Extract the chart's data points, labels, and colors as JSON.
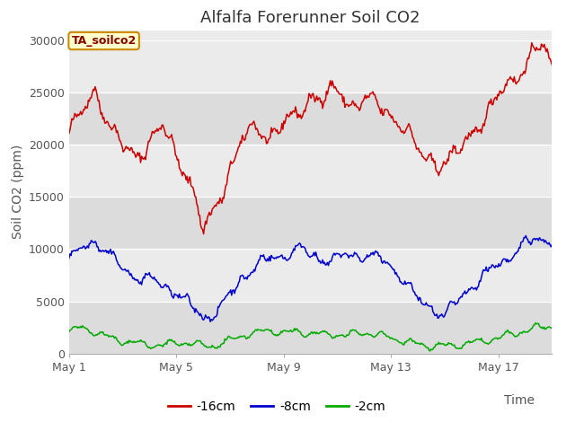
{
  "title": "Alfalfa Forerunner Soil CO2",
  "ylabel": "Soil CO2 (ppm)",
  "xlabel": "Time",
  "legend_label": "TA_soilco2",
  "series_labels": [
    "-16cm",
    "-8cm",
    "-2cm"
  ],
  "series_colors": [
    "#cc0000",
    "#0000cc",
    "#00aa00"
  ],
  "ylim": [
    0,
    31000
  ],
  "yticks": [
    0,
    5000,
    10000,
    15000,
    20000,
    25000,
    30000
  ],
  "xtick_labels": [
    "May 1",
    "May 5",
    "May 9",
    "May 13",
    "May 17"
  ],
  "xtick_positions": [
    0,
    4,
    8,
    12,
    16
  ],
  "xmax": 18,
  "n_points": 500,
  "band_color_light": "#ebebeb",
  "band_color_dark": "#dcdcdc",
  "title_fontsize": 13,
  "axis_fontsize": 10,
  "tick_fontsize": 9,
  "legend_fontsize": 10,
  "tag_facecolor": "#ffffcc",
  "tag_edgecolor": "#cc8800",
  "tag_textcolor": "#880000"
}
